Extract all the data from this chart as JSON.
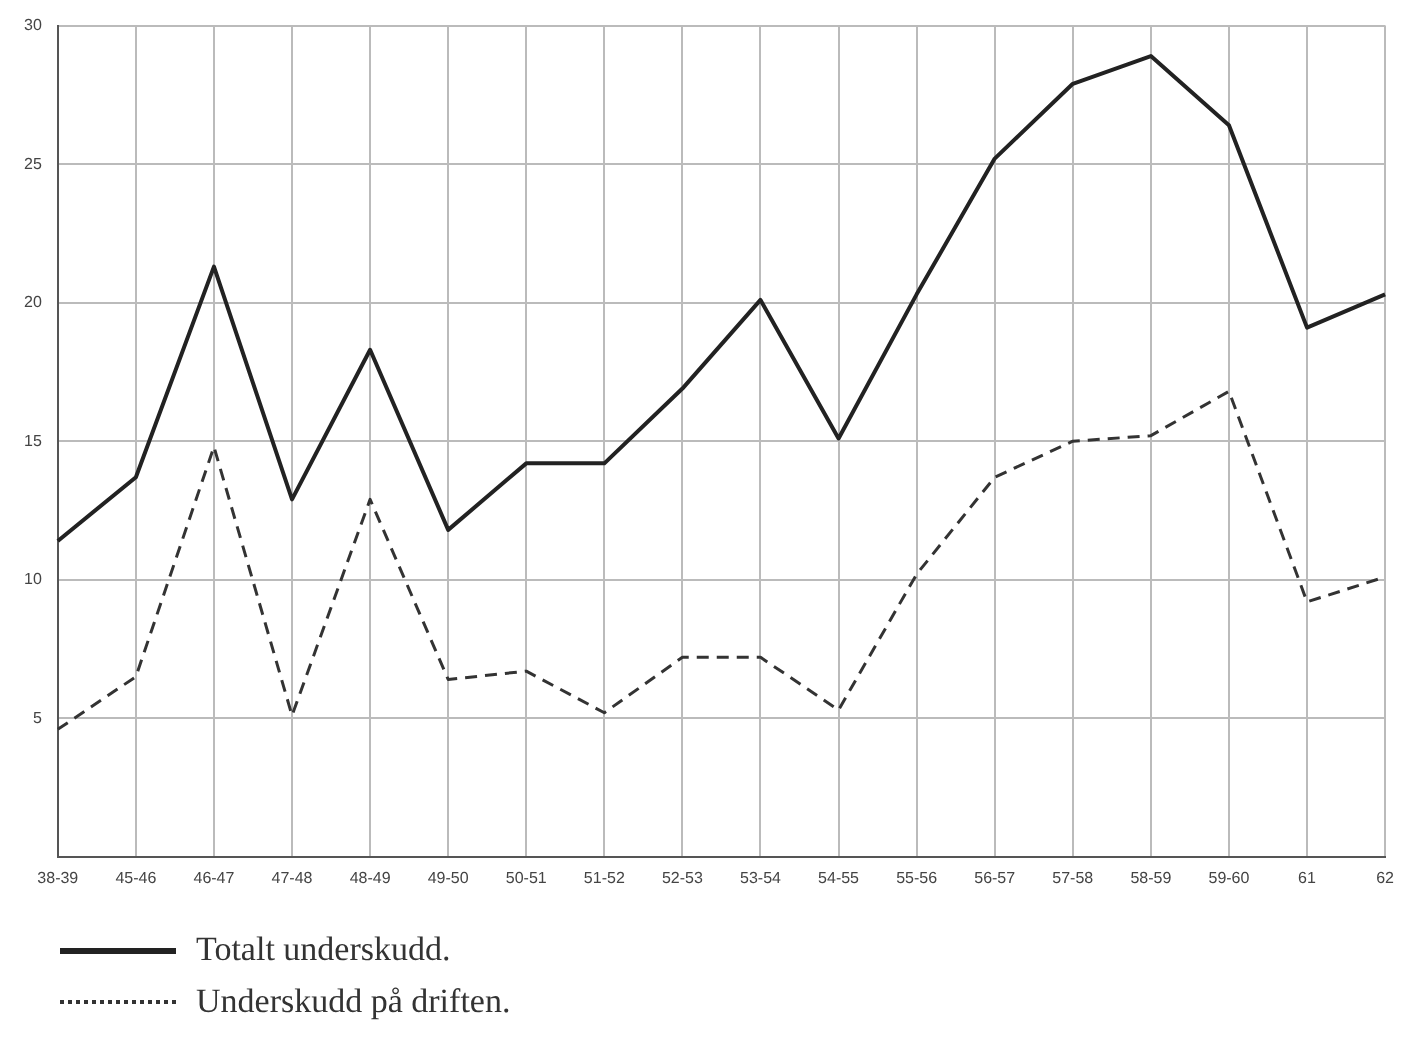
{
  "chart_data": {
    "type": "line",
    "categories": [
      "38-39",
      "45-46",
      "46-47",
      "47-48",
      "48-49",
      "49-50",
      "50-51",
      "51-52",
      "52-53",
      "53-54",
      "54-55",
      "55-56",
      "56-57",
      "57-58",
      "58-59",
      "59-60",
      "61",
      "62"
    ],
    "series": [
      {
        "name": "Totalt underskudd.",
        "color": "#222222",
        "line_style": "solid",
        "values": [
          11.4,
          13.7,
          21.3,
          12.9,
          18.3,
          11.8,
          14.2,
          14.2,
          16.9,
          20.1,
          15.1,
          20.3,
          25.2,
          27.9,
          28.9,
          26.4,
          19.1,
          20.3
        ]
      },
      {
        "name": "Underskudd på driften.",
        "color": "#333333",
        "line_style": "dashed",
        "values": [
          4.6,
          6.5,
          14.8,
          5.1,
          12.9,
          6.4,
          6.7,
          5.2,
          7.2,
          7.2,
          5.3,
          10.2,
          13.7,
          15.0,
          15.2,
          16.8,
          9.2,
          10.1
        ]
      }
    ],
    "ylim": [
      0,
      30
    ],
    "yticks": [
      5,
      10,
      15,
      20,
      25,
      30
    ],
    "grid": true,
    "legend": "bottom",
    "marker": "none"
  }
}
